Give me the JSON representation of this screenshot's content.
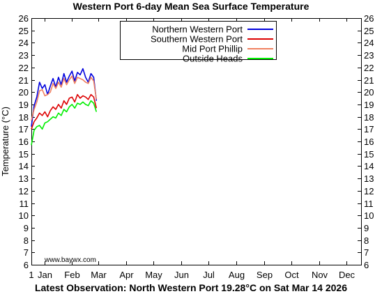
{
  "chart_data": {
    "type": "line",
    "title": "Western Port 6-day Mean Sea Surface Temperature",
    "ylabel": "Temperature (°C)",
    "xlabel": "",
    "footer": "Latest Observation: North Western Port 19.28°C on Sat Mar 14 2026",
    "watermark": "www.baywx.com",
    "xlim": [
      1,
      366
    ],
    "ylim": [
      6,
      26
    ],
    "yticks": [
      6,
      7,
      8,
      9,
      10,
      11,
      12,
      13,
      14,
      15,
      16,
      17,
      18,
      19,
      20,
      21,
      22,
      23,
      24,
      25,
      26
    ],
    "xtick_start": {
      "day": 1,
      "label": "1"
    },
    "month_labels": [
      {
        "day": 16,
        "label": "Jan"
      },
      {
        "day": 46,
        "label": "Feb"
      },
      {
        "day": 75,
        "label": "Mar"
      },
      {
        "day": 106,
        "label": "Apr"
      },
      {
        "day": 136,
        "label": "May"
      },
      {
        "day": 167,
        "label": "Jun"
      },
      {
        "day": 197,
        "label": "Jul"
      },
      {
        "day": 228,
        "label": "Aug"
      },
      {
        "day": 259,
        "label": "Sep"
      },
      {
        "day": 289,
        "label": "Oct"
      },
      {
        "day": 320,
        "label": "Nov"
      },
      {
        "day": 350,
        "label": "Dec"
      }
    ],
    "grid": false,
    "legend_position": "top-right",
    "x": [
      1,
      4,
      7,
      10,
      13,
      16,
      19,
      22,
      25,
      28,
      31,
      34,
      37,
      40,
      43,
      46,
      49,
      52,
      55,
      58,
      61,
      64,
      67,
      70,
      73
    ],
    "series": [
      {
        "name": "Northern Western Port",
        "color": "#0000dd",
        "values": [
          17.2,
          18.9,
          19.6,
          20.8,
          20.3,
          20.6,
          19.8,
          20.5,
          21.1,
          20.4,
          21.2,
          20.6,
          21.5,
          20.8,
          21.3,
          21.7,
          20.9,
          21.6,
          21.4,
          21.9,
          21.2,
          20.8,
          21.5,
          21.2,
          19.3
        ]
      },
      {
        "name": "Southern Western Port",
        "color": "#dd0000",
        "values": [
          17.0,
          17.6,
          17.9,
          18.3,
          18.1,
          18.4,
          18.0,
          18.5,
          18.8,
          18.6,
          19.0,
          18.7,
          19.3,
          19.0,
          19.5,
          19.6,
          19.2,
          19.8,
          19.5,
          19.7,
          19.6,
          19.4,
          19.8,
          19.6,
          18.7
        ]
      },
      {
        "name": "Mid Port Phillip",
        "color": "#f08060",
        "values": [
          17.7,
          18.6,
          19.2,
          20.1,
          20.2,
          19.7,
          19.8,
          20.0,
          20.7,
          20.3,
          20.8,
          20.4,
          21.1,
          20.6,
          21.0,
          21.3,
          20.7,
          21.2,
          21.1,
          21.0,
          20.8,
          20.7,
          21.2,
          20.9,
          19.4
        ]
      },
      {
        "name": "Outside Heads",
        "color": "#00ee00",
        "values": [
          15.7,
          16.9,
          17.2,
          17.3,
          17.0,
          17.5,
          17.6,
          17.8,
          18.0,
          17.9,
          18.3,
          18.1,
          18.6,
          18.4,
          18.8,
          19.0,
          18.7,
          19.1,
          19.0,
          19.2,
          19.0,
          18.9,
          19.3,
          19.1,
          18.4
        ]
      }
    ]
  }
}
